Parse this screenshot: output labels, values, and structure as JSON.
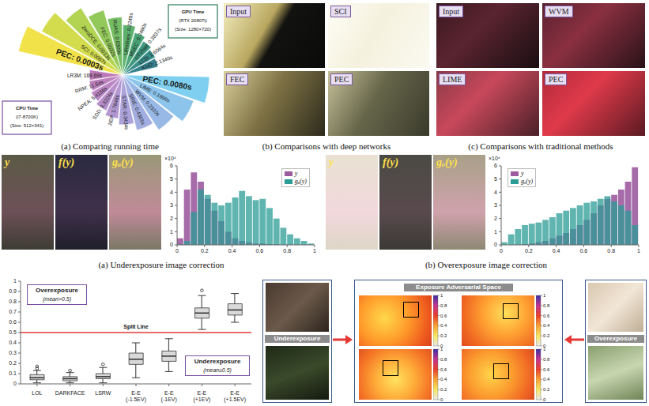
{
  "running_time": {
    "caption": "(a) Comparing running time",
    "gpu": {
      "title": [
        "GPU Time",
        "(RTX 2080Ti)",
        "(Size: 1280×720)"
      ],
      "labels": [
        "PEC: 0.0003s",
        "SCI: 0.0007s",
        "ZeroDCE: 0.0013s",
        "FEC: 0.0032s",
        "RUAS: 0.0309s",
        "URetinex: 0.2248s",
        "MSEC: 0.2490s",
        "UTVNet: 0.3837s",
        "LCD: 1.6064s",
        "KinD: 2.1340s"
      ],
      "colors": [
        "#f2e24a",
        "#d3dc4c",
        "#b3d452",
        "#93c95a",
        "#75bd64",
        "#5db16e",
        "#4aa577",
        "#3e9880",
        "#378c87",
        "#34808b"
      ]
    },
    "cpu": {
      "title": [
        "CPU Time",
        "(i7-8700K)",
        "(Size: 512×341)"
      ],
      "labels": [
        "PEC: 0.0080s",
        "LIME: 0.1899s",
        "WVM: 0.2310s",
        "SRIE: 0.4301s",
        "STAR: 0.3434s",
        "JIEP: 1.7648s",
        "SDD: 3.3224s",
        "NPEA: 5.4156s",
        "RRM: 11.54s",
        "LR3M: 169.69s"
      ],
      "colors": [
        "#7fd0f0",
        "#8cc4ec",
        "#98b8e6",
        "#a2ade0",
        "#aba2d9",
        "#b398d2",
        "#b78fcb",
        "#ba87c4",
        "#bc80bd",
        "#bd79b6"
      ]
    }
  },
  "deep_networks": {
    "caption": "(b) Comparisons with deep networks",
    "images": [
      "Input",
      "SCI",
      "FEC",
      "PEC"
    ]
  },
  "traditional_methods": {
    "caption": "(c) Comparisons with traditional methods",
    "images": [
      "Input",
      "WVM",
      "LIME",
      "PEC"
    ]
  },
  "underexposure": {
    "caption": "(a) Underexposure image correction",
    "images": [
      "y",
      "f(y)",
      "gᵤ(y)"
    ]
  },
  "overexposure": {
    "caption": "(b) Overexposure image correction",
    "images": [
      "y",
      "f(y)",
      "gₒ(y)"
    ]
  },
  "exposure_space": {
    "under": "Underexposure",
    "space": "Exposure Adversarial Space",
    "over": "Overexposure",
    "colorbar": {
      "range": [
        0,
        1
      ],
      "ticks": [
        0,
        0.2,
        0.4,
        0.6,
        0.8,
        1
      ]
    }
  },
  "chart_data": [
    {
      "type": "histogram",
      "bins": [
        0,
        0.05,
        0.1,
        0.15,
        0.2,
        0.25,
        0.3,
        0.35,
        0.4,
        0.45,
        0.5,
        0.55,
        0.6,
        0.65,
        0.7,
        0.75,
        0.8,
        0.85,
        0.9,
        0.95,
        1
      ],
      "series": [
        {
          "name": "y",
          "color": "#9c5b9e",
          "values": [
            0.5,
            4.2,
            5.5,
            4.8,
            3.5,
            2.6,
            1.8,
            1.0,
            0.5,
            0.3,
            0.2,
            0.1,
            0.1,
            0.05,
            0.05,
            0.02,
            0.02,
            0.01,
            0.01,
            0
          ]
        },
        {
          "name": "gᵤ(y)",
          "color": "#2b9c96",
          "values": [
            0.05,
            0.3,
            2.5,
            4.2,
            3.8,
            3.2,
            3.0,
            3.2,
            3.6,
            4.1,
            3.7,
            3.4,
            3.5,
            2.8,
            2.0,
            1.3,
            0.8,
            0.5,
            0.3,
            0.1
          ]
        }
      ],
      "xlim": [
        0,
        1
      ],
      "xticks": [
        0,
        0.2,
        0.4,
        0.6,
        0.8,
        1
      ],
      "ylim": [
        0,
        6
      ],
      "yticks": [
        0,
        1,
        2,
        3,
        4,
        5,
        6
      ],
      "y_scale_label": "×10⁴",
      "legend": "upper right"
    },
    {
      "type": "histogram",
      "bins": [
        0,
        0.05,
        0.1,
        0.15,
        0.2,
        0.25,
        0.3,
        0.35,
        0.4,
        0.45,
        0.5,
        0.55,
        0.6,
        0.65,
        0.7,
        0.75,
        0.8,
        0.85,
        0.9,
        0.95,
        1
      ],
      "series": [
        {
          "name": "y",
          "color": "#9c5b9e",
          "values": [
            0,
            0,
            0.02,
            0.05,
            0.1,
            0.2,
            0.3,
            0.5,
            0.7,
            0.9,
            1.2,
            1.5,
            1.9,
            2.4,
            3.0,
            3.5,
            3.8,
            4.2,
            4.8,
            5.9
          ]
        },
        {
          "name": "gₒ(y)",
          "color": "#2b9c96",
          "values": [
            0.2,
            0.8,
            1.2,
            1.5,
            1.6,
            1.7,
            1.9,
            2.1,
            2.4,
            2.6,
            2.8,
            3.0,
            3.2,
            3.3,
            3.5,
            3.7,
            3.3,
            3.0,
            2.6,
            1.5
          ]
        }
      ],
      "xlim": [
        0,
        1
      ],
      "xticks": [
        0,
        0.2,
        0.4,
        0.6,
        0.8,
        1
      ],
      "ylim": [
        0,
        6
      ],
      "yticks": [
        0,
        1,
        2,
        3,
        4,
        5,
        6
      ],
      "y_scale_label": "×10⁴",
      "legend": "upper left"
    },
    {
      "type": "box",
      "categories": [
        "LOL",
        "DARKFACE",
        "LSRW",
        "E-E (-1.5EV)",
        "E-E (-1EV)",
        "E-E (+1EV)",
        "E-E (+1.5EV)"
      ],
      "boxes": [
        {
          "min": 0.01,
          "q1": 0.04,
          "median": 0.06,
          "q3": 0.09,
          "max": 0.13,
          "outliers": [
            0.15,
            0.17
          ]
        },
        {
          "min": 0.01,
          "q1": 0.03,
          "median": 0.05,
          "q3": 0.07,
          "max": 0.11,
          "outliers": [
            0.13
          ]
        },
        {
          "min": 0.01,
          "q1": 0.05,
          "median": 0.07,
          "q3": 0.1,
          "max": 0.16,
          "outliers": [
            0.19
          ]
        },
        {
          "min": 0.06,
          "q1": 0.19,
          "median": 0.24,
          "q3": 0.3,
          "max": 0.4,
          "outliers": []
        },
        {
          "min": 0.12,
          "q1": 0.22,
          "median": 0.27,
          "q3": 0.32,
          "max": 0.44,
          "outliers": []
        },
        {
          "min": 0.53,
          "q1": 0.64,
          "median": 0.69,
          "q3": 0.74,
          "max": 0.86,
          "outliers": [
            0.91
          ]
        },
        {
          "min": 0.6,
          "q1": 0.67,
          "median": 0.72,
          "q3": 0.78,
          "max": 0.88,
          "outliers": []
        }
      ],
      "color": "#d9d9d9",
      "ylim": [
        0,
        1
      ],
      "yticks": [
        0,
        0.1,
        0.2,
        0.3,
        0.4,
        0.5,
        0.6,
        0.7,
        0.8,
        0.9,
        1
      ],
      "split_line": {
        "value": 0.5,
        "label": "Split Line",
        "color": "#e53935"
      },
      "annotations": [
        {
          "title": "Overexposure",
          "text": "(mean>0.5)"
        },
        {
          "title": "Underexposure",
          "text": "(mean≤0.5)"
        }
      ]
    }
  ]
}
